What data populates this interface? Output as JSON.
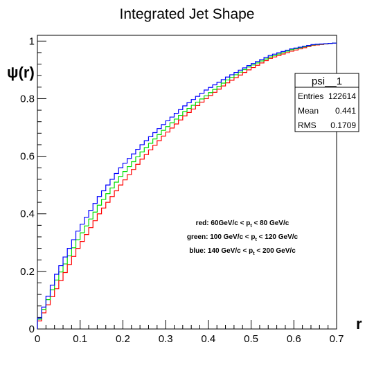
{
  "chart_data": {
    "type": "line",
    "title": "Integrated Jet Shape",
    "xlabel": "r",
    "ylabel": "ψ(r)",
    "xlim": [
      0,
      0.7
    ],
    "ylim": [
      0,
      1.02
    ],
    "x_ticks": [
      "0",
      "0.1",
      "0.2",
      "0.3",
      "0.4",
      "0.5",
      "0.6",
      "0.7"
    ],
    "y_ticks": [
      "0",
      "0.2",
      "0.4",
      "0.6",
      "0.8",
      "1"
    ],
    "step_histogram": true,
    "bins": 70,
    "series": [
      {
        "color": "#ff0000",
        "x": [
          0.0,
          0.05,
          0.1,
          0.15,
          0.2,
          0.25,
          0.3,
          0.35,
          0.4,
          0.45,
          0.5,
          0.55,
          0.6,
          0.65,
          0.7
        ],
        "values": [
          0.0,
          0.14,
          0.28,
          0.4,
          0.5,
          0.59,
          0.67,
          0.74,
          0.8,
          0.855,
          0.9,
          0.94,
          0.965,
          0.985,
          0.993
        ]
      },
      {
        "color": "#00dd00",
        "x": [
          0.0,
          0.05,
          0.1,
          0.15,
          0.2,
          0.25,
          0.3,
          0.35,
          0.4,
          0.45,
          0.5,
          0.55,
          0.6,
          0.65,
          0.7
        ],
        "values": [
          0.0,
          0.17,
          0.31,
          0.43,
          0.53,
          0.615,
          0.69,
          0.755,
          0.81,
          0.865,
          0.91,
          0.945,
          0.97,
          0.987,
          0.993
        ]
      },
      {
        "color": "#0000ff",
        "x": [
          0.0,
          0.05,
          0.1,
          0.15,
          0.2,
          0.25,
          0.3,
          0.35,
          0.4,
          0.45,
          0.5,
          0.55,
          0.6,
          0.65,
          0.7
        ],
        "values": [
          0.0,
          0.19,
          0.34,
          0.46,
          0.56,
          0.64,
          0.71,
          0.775,
          0.83,
          0.875,
          0.915,
          0.95,
          0.973,
          0.988,
          0.993
        ]
      }
    ],
    "annotations": [
      {
        "prefix": "red: 60GeV/c < p",
        "sub": "t",
        "suffix": " < 80 GeV/c"
      },
      {
        "prefix": "green: 100 GeV/c < p",
        "sub": "t",
        "suffix": " < 120 GeV/c"
      },
      {
        "prefix": "blue: 140 GeV/c < p",
        "sub": "t",
        "suffix": " < 200 GeV/c"
      }
    ],
    "stats_box": {
      "name": "psi__1",
      "rows": [
        {
          "label": "Entries",
          "value": "122614"
        },
        {
          "label": "Mean",
          "value": "0.441"
        },
        {
          "label": "RMS",
          "value": "0.1709"
        }
      ]
    },
    "grid": false,
    "legend": "none"
  }
}
